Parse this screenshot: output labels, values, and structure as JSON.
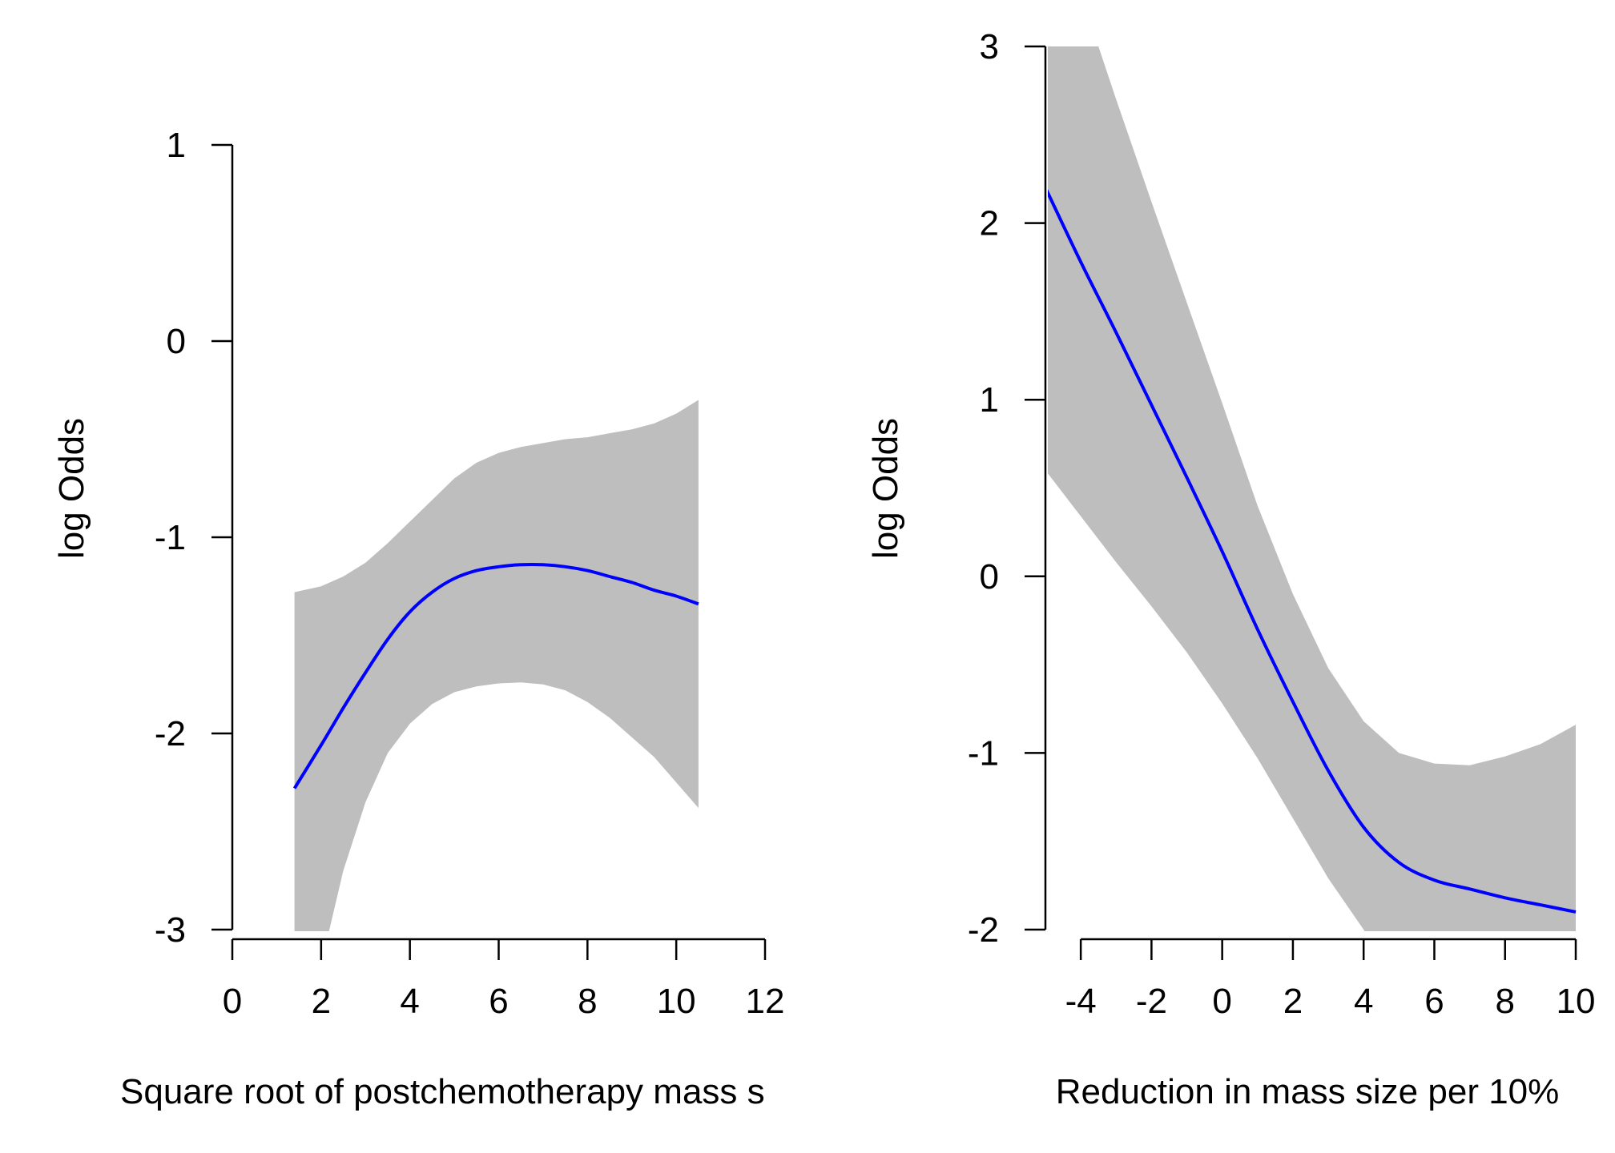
{
  "chart_data": [
    {
      "type": "line",
      "xlabel": "Square root of postchemotherapy mass s",
      "ylabel": "log Odds",
      "xlim": [
        0,
        12
      ],
      "ylim": [
        -3,
        1
      ],
      "x_ticks": [
        "0",
        "2",
        "4",
        "6",
        "8",
        "10",
        "12"
      ],
      "y_ticks": [
        "-3",
        "-2",
        "-1",
        "0",
        "1"
      ],
      "line_color": "#0000ff",
      "band_color": "#bebebe",
      "series": [
        {
          "x": [
            1.4,
            2,
            2.5,
            3,
            3.5,
            4,
            4.5,
            5,
            5.5,
            6,
            6.5,
            7,
            7.5,
            8,
            8.5,
            9,
            9.5,
            10,
            10.5
          ],
          "values": [
            -2.28,
            -2.06,
            -1.87,
            -1.69,
            -1.52,
            -1.38,
            -1.28,
            -1.21,
            -1.17,
            -1.15,
            -1.14,
            -1.14,
            -1.15,
            -1.17,
            -1.2,
            -1.23,
            -1.27,
            -1.3,
            -1.34
          ],
          "lower": [
            -3.5,
            -3.18,
            -2.7,
            -2.35,
            -2.1,
            -1.95,
            -1.85,
            -1.79,
            -1.76,
            -1.745,
            -1.74,
            -1.75,
            -1.78,
            -1.84,
            -1.92,
            -2.02,
            -2.12,
            -2.25,
            -2.38
          ],
          "upper": [
            -1.28,
            -1.25,
            -1.2,
            -1.13,
            -1.03,
            -0.92,
            -0.81,
            -0.7,
            -0.62,
            -0.57,
            -0.54,
            -0.52,
            -0.5,
            -0.49,
            -0.47,
            -0.45,
            -0.42,
            -0.37,
            -0.3
          ]
        }
      ]
    },
    {
      "type": "line",
      "xlabel": "Reduction in mass size per 10%",
      "ylabel": "log Odds",
      "xlim": [
        -5,
        10
      ],
      "ylim": [
        -2,
        3
      ],
      "x_ticks": [
        "-4",
        "-2",
        "0",
        "2",
        "4",
        "6",
        "8",
        "10"
      ],
      "y_ticks": [
        "-2",
        "-1",
        "0",
        "1",
        "2",
        "3"
      ],
      "line_color": "#0000ff",
      "band_color": "#bebebe",
      "series": [
        {
          "x": [
            -5,
            -4,
            -3,
            -2,
            -1,
            0,
            1,
            2,
            3,
            4,
            5,
            6,
            7,
            8,
            9,
            10
          ],
          "values": [
            2.2,
            1.78,
            1.38,
            0.97,
            0.56,
            0.14,
            -0.3,
            -0.71,
            -1.1,
            -1.42,
            -1.62,
            -1.72,
            -1.77,
            -1.82,
            -1.86,
            -1.9
          ],
          "lower": [
            0.6,
            0.34,
            0.08,
            -0.17,
            -0.43,
            -0.72,
            -1.03,
            -1.37,
            -1.71,
            -2.0,
            -2.3,
            -2.55,
            -2.8,
            -3.0,
            -3.2,
            -3.4
          ],
          "upper": [
            3.6,
            3.3,
            2.7,
            2.12,
            1.55,
            0.98,
            0.4,
            -0.1,
            -0.52,
            -0.82,
            -1.0,
            -1.06,
            -1.07,
            -1.02,
            -0.95,
            -0.84
          ]
        }
      ]
    }
  ]
}
